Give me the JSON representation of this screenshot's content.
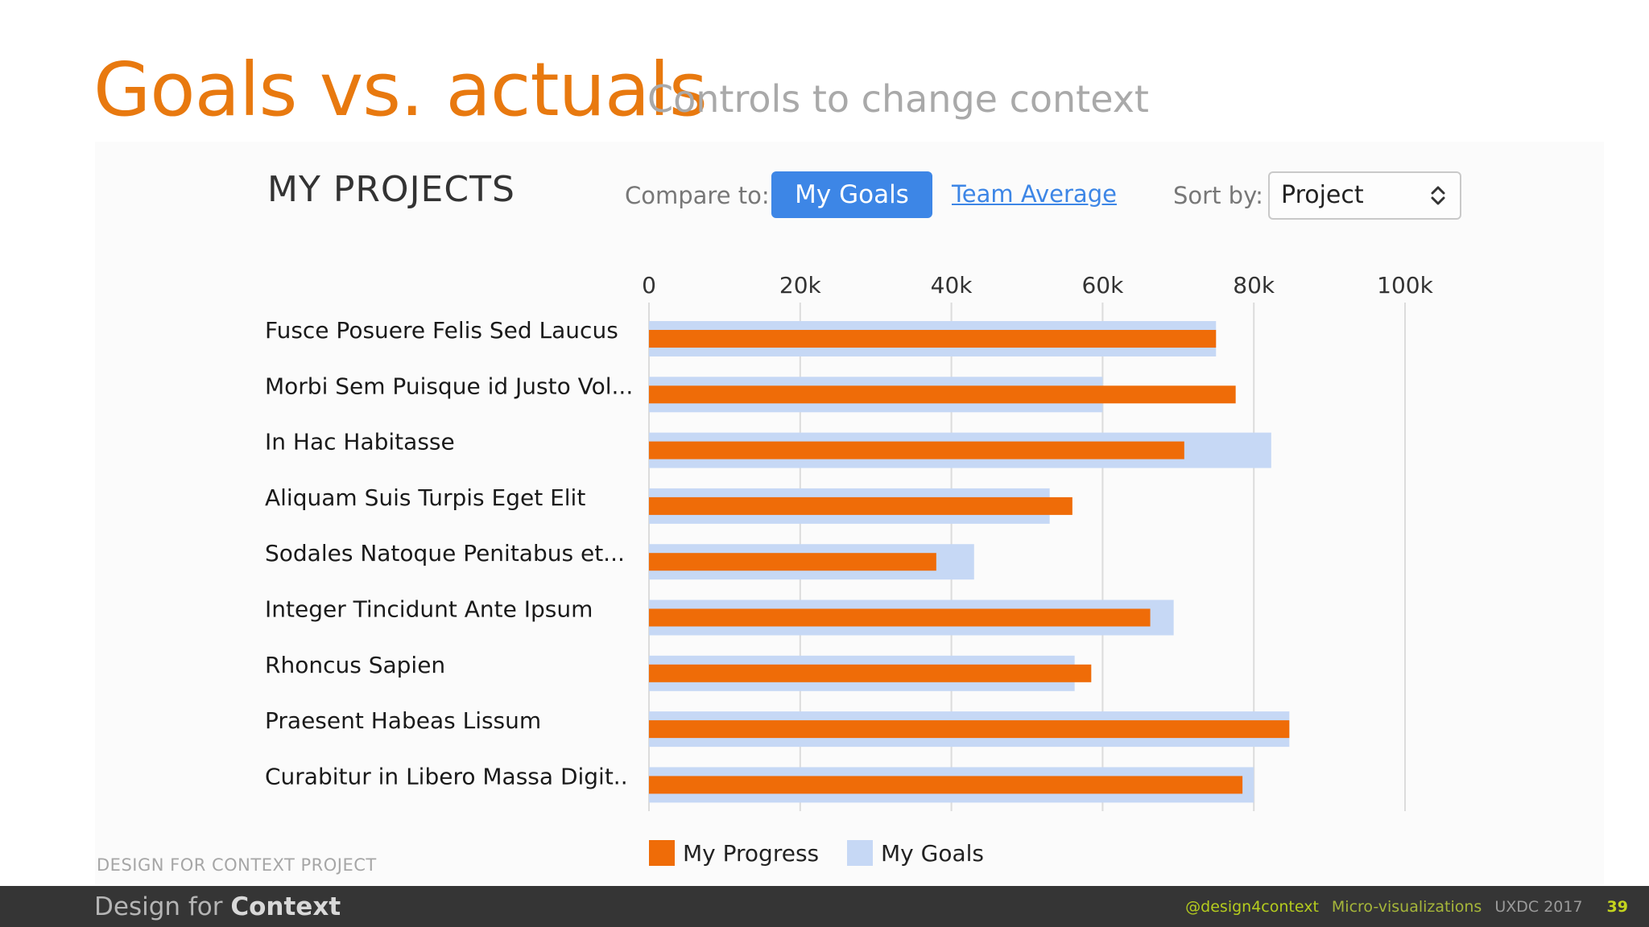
{
  "title": "Goals vs. actuals",
  "subtitle": "Controls to change context",
  "panel": {
    "heading": "MY PROJECTS",
    "compare_label": "Compare to:",
    "compare_options": [
      "My Goals",
      "Team Average"
    ],
    "compare_selected": "My Goals",
    "sort_label": "Sort by:",
    "sort_value": "Project"
  },
  "chart_data": {
    "type": "bar",
    "orientation": "horizontal",
    "categories": [
      "Fusce Posuere Felis Sed Laucus",
      "Morbi Sem Puisque id Justo Vol...",
      "In Hac Habitasse",
      "Aliquam Suis Turpis Eget Elit",
      "Sodales Natoque Penitabus et...",
      "Integer Tincidunt Ante Ipsum",
      "Rhoncus Sapien",
      "Praesent Habeas Lissum",
      "Curabitur in Libero Massa Digit.."
    ],
    "series": [
      {
        "name": "My Progress",
        "color": "#ef6c08",
        "values": [
          75000,
          77600,
          70800,
          56000,
          38000,
          66300,
          58500,
          84700,
          78500
        ]
      },
      {
        "name": "My Goals",
        "color": "#c6d8f5",
        "values": [
          75000,
          60000,
          82300,
          53000,
          43000,
          69400,
          56300,
          84700,
          80000
        ]
      }
    ],
    "xlim": [
      0,
      100000
    ],
    "ticks": [
      "0",
      "20k",
      "40k",
      "60k",
      "80k",
      "100k"
    ],
    "tick_values": [
      0,
      20000,
      40000,
      60000,
      80000,
      100000
    ],
    "grid": true,
    "legend_position": "bottom"
  },
  "footer": {
    "project": "DESIGN FOR CONTEXT PROJECT",
    "brand_light": "Design for ",
    "brand_bold": "Context",
    "handle": "@design4context",
    "topic": "Micro-visualizations",
    "event": "UXDC 2017",
    "page": "39"
  }
}
